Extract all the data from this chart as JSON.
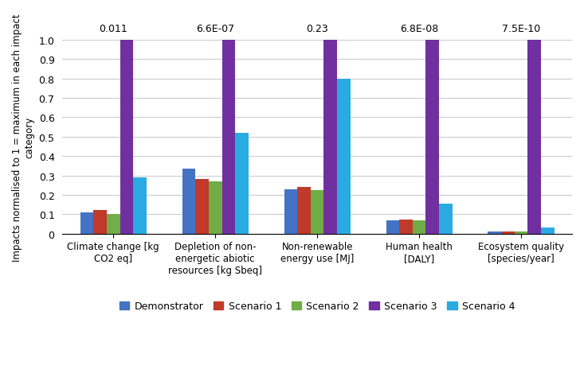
{
  "categories": [
    "Climate change [kg\nCO2 eq]",
    "Depletion of non-\nenergetic abiotic\nresources [kg Sbeq]",
    "Non-renewable\nenergy use [MJ]",
    "Human health\n[DALY]",
    "Ecosystem quality\n[species/year]"
  ],
  "series_names": [
    "Demonstrator",
    "Scenario 1",
    "Scenario 2",
    "Scenario 3",
    "Scenario 4"
  ],
  "series_values": [
    [
      0.11,
      0.335,
      0.23,
      0.07,
      0.013
    ],
    [
      0.12,
      0.28,
      0.24,
      0.072,
      0.012
    ],
    [
      0.1,
      0.268,
      0.225,
      0.068,
      0.01
    ],
    [
      1.0,
      1.0,
      1.0,
      1.0,
      1.0
    ],
    [
      0.29,
      0.52,
      0.8,
      0.155,
      0.033
    ]
  ],
  "colors": [
    "#4472C4",
    "#C0392B",
    "#70AD47",
    "#7030A0",
    "#29ABE2"
  ],
  "top_labels": [
    "0.011",
    "6.6E-07",
    "0.23",
    "6.8E-08",
    "7.5E-10"
  ],
  "ylabel": "Impacts normalised to 1 = maximum in each impact\ncategory",
  "ylim": [
    0,
    1.0
  ],
  "yticks": [
    0,
    0.1,
    0.2,
    0.3,
    0.4,
    0.5,
    0.6,
    0.7,
    0.8,
    0.9,
    1.0
  ],
  "grid_color": "#cccccc",
  "bar_width": 0.13
}
